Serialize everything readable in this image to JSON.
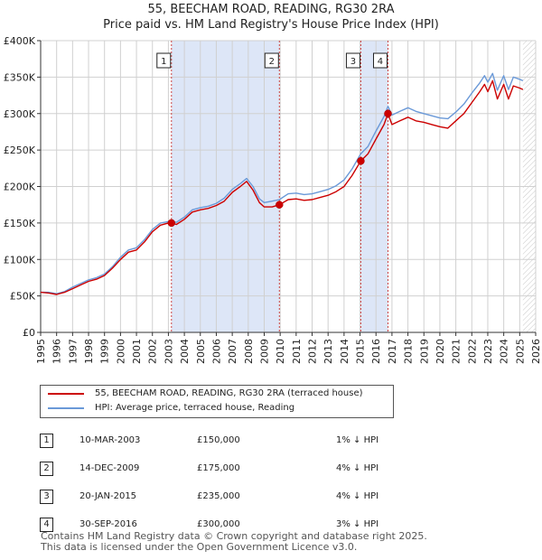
{
  "header": {
    "title_line1": "55, BEECHAM ROAD, READING, RG30 2RA",
    "title_line2": "Price paid vs. HM Land Registry's House Price Index (HPI)"
  },
  "chart_data": {
    "type": "line",
    "title": "55, BEECHAM ROAD, READING, RG30 2RA — Price paid vs. HM Land Registry's House Price Index (HPI)",
    "xlim": [
      1995,
      2026
    ],
    "ylim": [
      0,
      400000
    ],
    "x_ticks": [
      1995,
      1996,
      1997,
      1998,
      1999,
      2000,
      2001,
      2002,
      2003,
      2004,
      2005,
      2006,
      2007,
      2008,
      2009,
      2010,
      2011,
      2012,
      2013,
      2014,
      2015,
      2016,
      2017,
      2018,
      2019,
      2020,
      2021,
      2022,
      2023,
      2024,
      2025,
      2026
    ],
    "y_ticks": [
      {
        "value": 0,
        "label": "£0"
      },
      {
        "value": 50000,
        "label": "£50K"
      },
      {
        "value": 100000,
        "label": "£100K"
      },
      {
        "value": 150000,
        "label": "£150K"
      },
      {
        "value": 200000,
        "label": "£200K"
      },
      {
        "value": 250000,
        "label": "£250K"
      },
      {
        "value": 300000,
        "label": "£300K"
      },
      {
        "value": 350000,
        "label": "£350K"
      },
      {
        "value": 400000,
        "label": "£400K"
      }
    ],
    "data_end_year": 2025.2,
    "shaded_periods": [
      [
        2003.19,
        2009.95
      ],
      [
        2015.05,
        2016.75
      ]
    ],
    "colors": {
      "property": "#cc0000",
      "hpi": "#6a99d8",
      "shade": "#dde6f7",
      "grid": "#d0d0d0",
      "marker_line": "#cc4444"
    },
    "series": [
      {
        "name": "55, BEECHAM ROAD, READING, RG30 2RA (terraced house)",
        "x": [
          1995.0,
          1995.5,
          1996.0,
          1996.5,
          1997.0,
          1997.5,
          1998.0,
          1998.5,
          1999.0,
          1999.5,
          2000.0,
          2000.5,
          2001.0,
          2001.5,
          2002.0,
          2002.5,
          2003.0,
          2003.19,
          2003.5,
          2004.0,
          2004.5,
          2005.0,
          2005.5,
          2006.0,
          2006.5,
          2007.0,
          2007.5,
          2007.9,
          2008.3,
          2008.7,
          2009.0,
          2009.5,
          2009.95,
          2010.5,
          2011.0,
          2011.5,
          2012.0,
          2012.5,
          2013.0,
          2013.5,
          2014.0,
          2014.5,
          2015.05,
          2015.5,
          2016.0,
          2016.5,
          2016.75,
          2017.0,
          2017.5,
          2018.0,
          2018.5,
          2019.0,
          2019.5,
          2020.0,
          2020.5,
          2021.0,
          2021.5,
          2022.0,
          2022.5,
          2022.8,
          2023.0,
          2023.3,
          2023.6,
          2024.0,
          2024.3,
          2024.6,
          2025.0,
          2025.2
        ],
        "values": [
          55000,
          54000,
          52000,
          55000,
          60000,
          65000,
          70000,
          73000,
          78000,
          88000,
          100000,
          110000,
          113000,
          124000,
          138000,
          147000,
          150000,
          150000,
          148000,
          155000,
          165000,
          168000,
          170000,
          174000,
          180000,
          192000,
          200000,
          207000,
          195000,
          178000,
          172000,
          172000,
          175000,
          182000,
          183000,
          181000,
          182000,
          185000,
          188000,
          193000,
          200000,
          215000,
          235000,
          245000,
          265000,
          285000,
          300000,
          285000,
          290000,
          295000,
          290000,
          288000,
          285000,
          282000,
          280000,
          290000,
          300000,
          315000,
          330000,
          340000,
          330000,
          345000,
          320000,
          340000,
          320000,
          338000,
          335000,
          333000
        ]
      },
      {
        "name": "HPI: Average price, terraced house, Reading",
        "x": [
          1995.0,
          1995.5,
          1996.0,
          1996.5,
          1997.0,
          1997.5,
          1998.0,
          1998.5,
          1999.0,
          1999.5,
          2000.0,
          2000.5,
          2001.0,
          2001.5,
          2002.0,
          2002.5,
          2003.0,
          2003.19,
          2003.5,
          2004.0,
          2004.5,
          2005.0,
          2005.5,
          2006.0,
          2006.5,
          2007.0,
          2007.5,
          2007.9,
          2008.3,
          2008.7,
          2009.0,
          2009.5,
          2009.95,
          2010.5,
          2011.0,
          2011.5,
          2012.0,
          2012.5,
          2013.0,
          2013.5,
          2014.0,
          2014.5,
          2015.05,
          2015.5,
          2016.0,
          2016.5,
          2016.75,
          2017.0,
          2017.5,
          2018.0,
          2018.5,
          2019.0,
          2019.5,
          2020.0,
          2020.5,
          2021.0,
          2021.5,
          2022.0,
          2022.5,
          2022.8,
          2023.0,
          2023.3,
          2023.6,
          2024.0,
          2024.3,
          2024.6,
          2025.0,
          2025.2
        ],
        "values": [
          55000,
          55000,
          53000,
          56000,
          62000,
          67000,
          72000,
          75000,
          80000,
          90000,
          103000,
          113000,
          116000,
          127000,
          141000,
          150000,
          152000,
          152000,
          151000,
          158000,
          168000,
          171000,
          173000,
          177000,
          184000,
          196000,
          204000,
          211000,
          200000,
          183000,
          178000,
          180000,
          182000,
          190000,
          191000,
          189000,
          190000,
          193000,
          196000,
          201000,
          209000,
          224000,
          245000,
          255000,
          276000,
          296000,
          310000,
          298000,
          303000,
          308000,
          303000,
          300000,
          297000,
          294000,
          293000,
          302000,
          313000,
          328000,
          342000,
          352000,
          343000,
          355000,
          332000,
          352000,
          333000,
          350000,
          347000,
          345000
        ]
      }
    ],
    "sales": [
      {
        "n": "1",
        "x": 2003.19,
        "price": 150000
      },
      {
        "n": "2",
        "x": 2009.95,
        "price": 175000
      },
      {
        "n": "3",
        "x": 2015.05,
        "price": 235000
      },
      {
        "n": "4",
        "x": 2016.75,
        "price": 300000
      }
    ]
  },
  "legend": {
    "property_label": "55, BEECHAM ROAD, READING, RG30 2RA (terraced house)",
    "hpi_label": "HPI: Average price, terraced house, Reading"
  },
  "transactions": [
    {
      "n": "1",
      "date": "10-MAR-2003",
      "price": "£150,000",
      "hpi": "1% ↓ HPI"
    },
    {
      "n": "2",
      "date": "14-DEC-2009",
      "price": "£175,000",
      "hpi": "4% ↓ HPI"
    },
    {
      "n": "3",
      "date": "20-JAN-2015",
      "price": "£235,000",
      "hpi": "4% ↓ HPI"
    },
    {
      "n": "4",
      "date": "30-SEP-2016",
      "price": "£300,000",
      "hpi": "3% ↓ HPI"
    }
  ],
  "footer": {
    "line1": "Contains HM Land Registry data © Crown copyright and database right 2025.",
    "line2": "This data is licensed under the Open Government Licence v3.0."
  }
}
